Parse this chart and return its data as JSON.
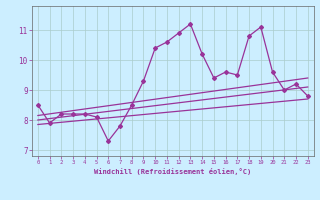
{
  "xlabel": "Windchill (Refroidissement éolien,°C)",
  "x_ticks": [
    0,
    1,
    2,
    3,
    4,
    5,
    6,
    7,
    8,
    9,
    10,
    11,
    12,
    13,
    14,
    15,
    16,
    17,
    18,
    19,
    20,
    21,
    22,
    23
  ],
  "ylim": [
    6.8,
    11.8
  ],
  "yticks": [
    7,
    8,
    9,
    10,
    11
  ],
  "xlim": [
    -0.5,
    23.5
  ],
  "bg_color": "#cceeff",
  "line_color": "#993399",
  "grid_color": "#aacccc",
  "series1_x": [
    0,
    1,
    2,
    3,
    4,
    5,
    6,
    7,
    8,
    9,
    10,
    11,
    12,
    13,
    14,
    15,
    16,
    17,
    18,
    19,
    20,
    21,
    22,
    23
  ],
  "series1_y": [
    8.5,
    7.9,
    8.2,
    8.2,
    8.2,
    8.1,
    7.3,
    7.8,
    8.5,
    9.3,
    10.4,
    10.6,
    10.9,
    11.2,
    10.2,
    9.4,
    9.6,
    9.5,
    10.8,
    11.1,
    9.6,
    9.0,
    9.2,
    8.8
  ],
  "trend1_x": [
    0,
    23
  ],
  "trend1_y": [
    8.0,
    9.1
  ],
  "trend2_x": [
    0,
    23
  ],
  "trend2_y": [
    7.85,
    8.7
  ],
  "trend3_x": [
    0,
    23
  ],
  "trend3_y": [
    8.15,
    9.4
  ]
}
